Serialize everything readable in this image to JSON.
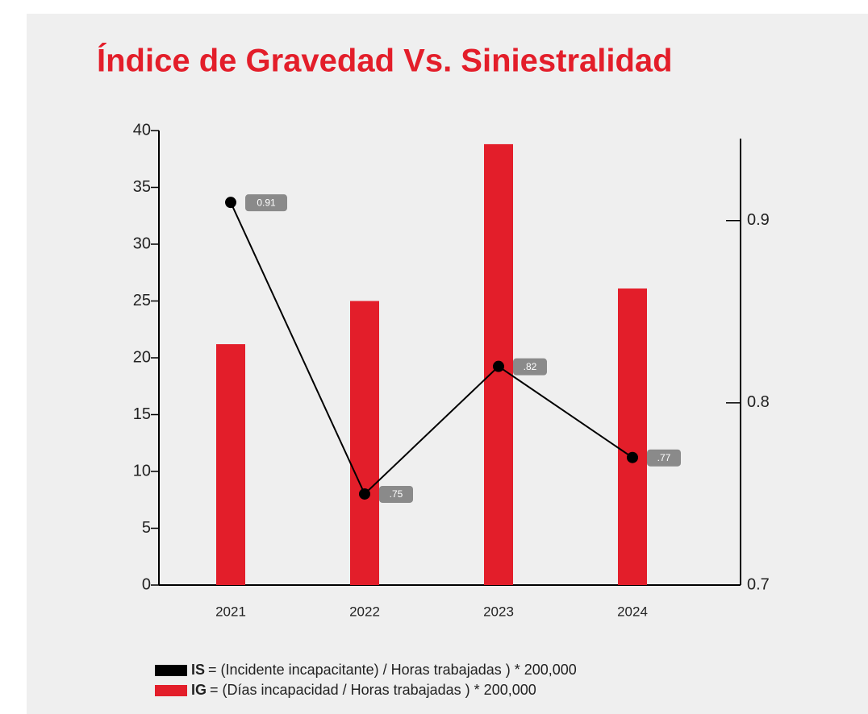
{
  "chart_data": {
    "type": "bar",
    "title": "Índice de Gravedad Vs. Siniestralidad",
    "categories": [
      "2021",
      "2022",
      "2023",
      "2024"
    ],
    "series": [
      {
        "name": "IS",
        "description": "= (Incidente incapacitante) / Horas trabajadas ) * 200,000",
        "type": "line",
        "axis": "y2",
        "color": "#000000",
        "values": [
          0.91,
          0.75,
          0.82,
          0.77
        ],
        "value_labels": [
          "0.91",
          ".75",
          ".82",
          ".77"
        ]
      },
      {
        "name": "IG",
        "description": "= (Días incapacidad / Horas trabajadas ) * 200,000",
        "type": "bar",
        "axis": "y",
        "color": "#e31e2a",
        "values": [
          21.2,
          25,
          38.8,
          26.1
        ]
      }
    ],
    "ylim": [
      0,
      40
    ],
    "yticks": [
      0,
      5,
      10,
      15,
      20,
      25,
      30,
      35,
      40
    ],
    "y2lim": [
      0.7,
      0.945
    ],
    "y2ticks": [
      0.7,
      0.8,
      0.9
    ],
    "legend": "bottom-left"
  }
}
